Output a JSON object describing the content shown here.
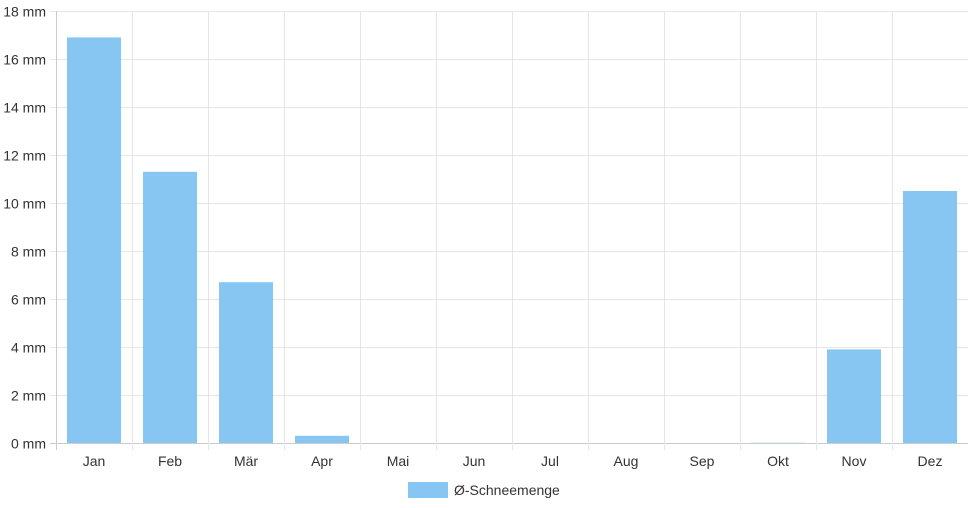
{
  "chart_data": {
    "type": "bar",
    "categories": [
      "Jan",
      "Feb",
      "Mär",
      "Apr",
      "Mai",
      "Jun",
      "Jul",
      "Aug",
      "Sep",
      "Okt",
      "Nov",
      "Dez"
    ],
    "series": [
      {
        "name": "Ø-Schneemenge",
        "values": [
          16.9,
          11.3,
          6.7,
          0.3,
          0,
          0,
          0,
          0,
          0,
          0.01,
          3.9,
          10.5
        ]
      }
    ],
    "ylim": [
      0,
      18
    ],
    "yticks": [
      0,
      2,
      4,
      6,
      8,
      10,
      12,
      14,
      16,
      18
    ],
    "y_unit": "mm",
    "grid": true,
    "legend_position": "bottom",
    "colors": {
      "bar": "#87c6f2",
      "grid": "#e6e6e6",
      "axis": "#cccccc",
      "text": "#333333"
    }
  }
}
